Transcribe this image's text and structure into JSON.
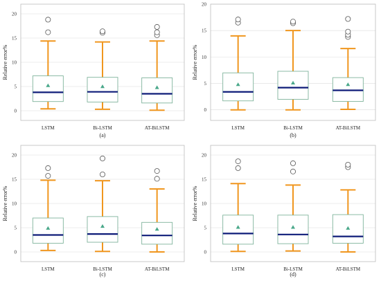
{
  "colors": {
    "whisker": "#f0961e",
    "box_edge": "#7fb39b",
    "median": "#0d1b78",
    "mean_marker": "#4aa88a",
    "grid": "#dcdcdc",
    "frame": "#bbbbbb",
    "outlier": "#555555"
  },
  "chart_data": [
    {
      "type": "box",
      "caption": "(a)",
      "ylabel": "Relative error%",
      "ylim": [
        -2,
        22
      ],
      "yticks": [
        0,
        5,
        10,
        15,
        20
      ],
      "grid": true,
      "categories": [
        "LSTM",
        "Bi-LSTM",
        "AT-BiLSTM"
      ],
      "boxes": [
        {
          "whisker_low": 0.4,
          "q1": 1.9,
          "median": 3.8,
          "q3": 7.2,
          "whisker_high": 14.4,
          "mean": 5.2,
          "outliers": [
            16.2,
            18.8
          ]
        },
        {
          "whisker_low": 0.3,
          "q1": 1.8,
          "median": 3.9,
          "q3": 6.9,
          "whisker_high": 14.2,
          "mean": 5.0,
          "outliers": [
            16.1,
            16.4
          ]
        },
        {
          "whisker_low": 0.1,
          "q1": 1.6,
          "median": 3.5,
          "q3": 6.8,
          "whisker_high": 14.4,
          "mean": 4.8,
          "outliers": [
            15.6,
            16.2,
            17.3
          ]
        }
      ]
    },
    {
      "type": "box",
      "caption": "(b)",
      "ylabel": "Relative error%",
      "ylim": [
        -2,
        20
      ],
      "yticks": [
        0,
        5,
        10,
        15,
        20
      ],
      "grid": true,
      "categories": [
        "LSTM",
        "Bi-LSTM",
        "AT-BiLSTM"
      ],
      "boxes": [
        {
          "whisker_low": 0.0,
          "q1": 1.7,
          "median": 3.4,
          "q3": 7.0,
          "whisker_high": 14.0,
          "mean": 4.8,
          "outliers": [
            16.5,
            17.1
          ]
        },
        {
          "whisker_low": 0.0,
          "q1": 2.0,
          "median": 4.2,
          "q3": 7.3,
          "whisker_high": 15.0,
          "mean": 5.1,
          "outliers": [
            16.4,
            16.7
          ]
        },
        {
          "whisker_low": 0.1,
          "q1": 1.6,
          "median": 3.7,
          "q3": 6.1,
          "whisker_high": 11.6,
          "mean": 4.8,
          "outliers": [
            13.8,
            14.2,
            14.8,
            17.2
          ]
        }
      ]
    },
    {
      "type": "box",
      "caption": "(c)",
      "ylabel": "Relative error%",
      "ylim": [
        -2,
        22
      ],
      "yticks": [
        0,
        5,
        10,
        15,
        20
      ],
      "grid": true,
      "categories": [
        "LSTM",
        "Bi-LSTM",
        "AT-BiLSTM"
      ],
      "boxes": [
        {
          "whisker_low": 0.3,
          "q1": 1.8,
          "median": 3.5,
          "q3": 7.0,
          "whisker_high": 14.8,
          "mean": 4.9,
          "outliers": [
            15.7,
            17.3
          ]
        },
        {
          "whisker_low": 0.1,
          "q1": 2.0,
          "median": 3.7,
          "q3": 7.3,
          "whisker_high": 14.7,
          "mean": 5.3,
          "outliers": [
            16.0,
            19.3
          ]
        },
        {
          "whisker_low": 0.0,
          "q1": 1.6,
          "median": 3.4,
          "q3": 6.1,
          "whisker_high": 13.0,
          "mean": 4.7,
          "outliers": [
            15.1,
            16.7
          ]
        }
      ]
    },
    {
      "type": "box",
      "caption": "(d)",
      "ylabel": "Relative error%",
      "ylim": [
        -2,
        22
      ],
      "yticks": [
        0,
        5,
        10,
        15,
        20
      ],
      "grid": true,
      "categories": [
        "LSTM",
        "Bi-LSTM",
        "AT-BiLSTM"
      ],
      "boxes": [
        {
          "whisker_low": 0.1,
          "q1": 1.6,
          "median": 3.8,
          "q3": 7.6,
          "whisker_high": 14.1,
          "mean": 5.1,
          "outliers": [
            17.3,
            18.7
          ]
        },
        {
          "whisker_low": 0.2,
          "q1": 1.7,
          "median": 3.6,
          "q3": 7.6,
          "whisker_high": 13.8,
          "mean": 5.1,
          "outliers": [
            16.6,
            18.3
          ]
        },
        {
          "whisker_low": 0.0,
          "q1": 1.8,
          "median": 3.2,
          "q3": 7.7,
          "whisker_high": 12.8,
          "mean": 4.9,
          "outliers": [
            17.5,
            18.0
          ]
        }
      ]
    }
  ]
}
